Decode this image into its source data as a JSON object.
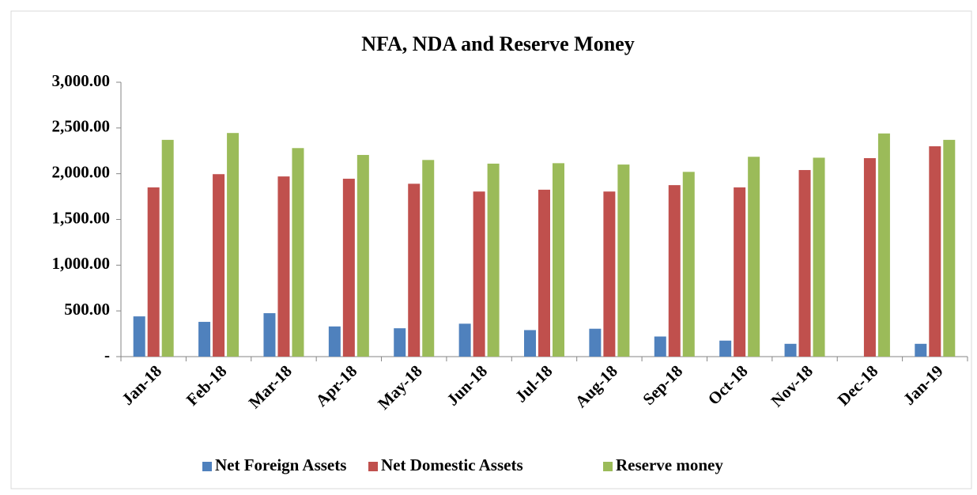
{
  "chart_data": {
    "type": "bar",
    "title": "NFA, NDA and Reserve Money",
    "categories": [
      "Jan-18",
      "Feb-18",
      "Mar-18",
      "Apr-18",
      "May-18",
      "Jun-18",
      "Jul-18",
      "Aug-18",
      "Sep-18",
      "Oct-18",
      "Nov-18",
      "Dec-18",
      "Jan-19"
    ],
    "series": [
      {
        "name": "Net Foreign Assets",
        "color": "#4f81bd",
        "values": [
          440,
          380,
          475,
          330,
          310,
          360,
          290,
          305,
          220,
          175,
          140,
          null,
          140
        ]
      },
      {
        "name": "Net Domestic Assets",
        "color": "#c0504d",
        "values": [
          1850,
          1995,
          1970,
          1945,
          1890,
          1805,
          1825,
          1805,
          1875,
          1850,
          2040,
          2170,
          2300
        ]
      },
      {
        "name": "Reserve money",
        "color": "#9bbb59",
        "values": [
          2370,
          2445,
          2280,
          2205,
          2150,
          2110,
          2115,
          2100,
          2020,
          2185,
          2175,
          2440,
          2370
        ]
      }
    ],
    "ylim": [
      0,
      3000
    ],
    "yticks": [
      {
        "value": 0,
        "label": "-"
      },
      {
        "value": 500,
        "label": "500.00"
      },
      {
        "value": 1000,
        "label": "1,000.00"
      },
      {
        "value": 1500,
        "label": "1,500.00"
      },
      {
        "value": 2000,
        "label": "2,000.00"
      },
      {
        "value": 2500,
        "label": "2,500.00"
      },
      {
        "value": 3000,
        "label": "3,000.00"
      }
    ],
    "legend": "bottom"
  }
}
